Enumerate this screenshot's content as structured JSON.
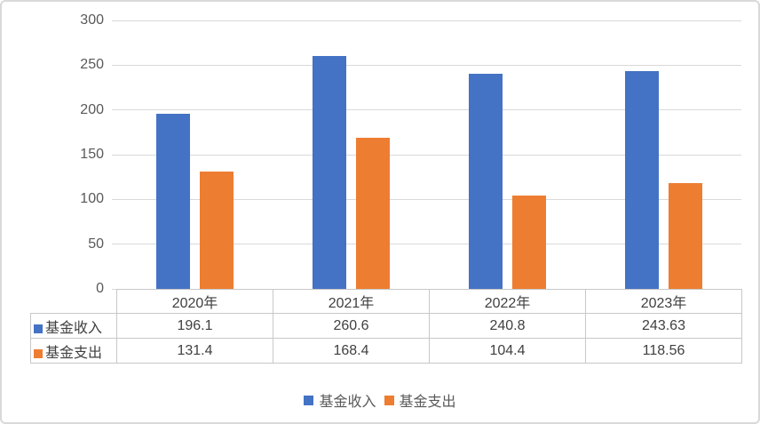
{
  "colors": {
    "income": "#4472C4",
    "expense": "#ED7D31",
    "gridline": "#D9D9D9",
    "table_border": "#C8C8C8",
    "axis_text": "#595959",
    "table_text": "#404040"
  },
  "chart_data": {
    "type": "bar",
    "title": "",
    "xlabel": "",
    "ylabel": "",
    "categories": [
      "2020年",
      "2021年",
      "2022年",
      "2023年"
    ],
    "series": [
      {
        "id": "income",
        "name": "基金收入",
        "color": "#4472C4",
        "values": [
          196.1,
          260.6,
          240.8,
          243.63
        ]
      },
      {
        "id": "expense",
        "name": "基金支出",
        "color": "#ED7D31",
        "values": [
          131.4,
          168.4,
          104.4,
          118.56
        ]
      }
    ],
    "ylim": [
      0,
      300
    ],
    "yticks": [
      0,
      50,
      100,
      150,
      200,
      250,
      300
    ],
    "grid": true,
    "legend_position": "bottom",
    "data_table_shown": true
  }
}
